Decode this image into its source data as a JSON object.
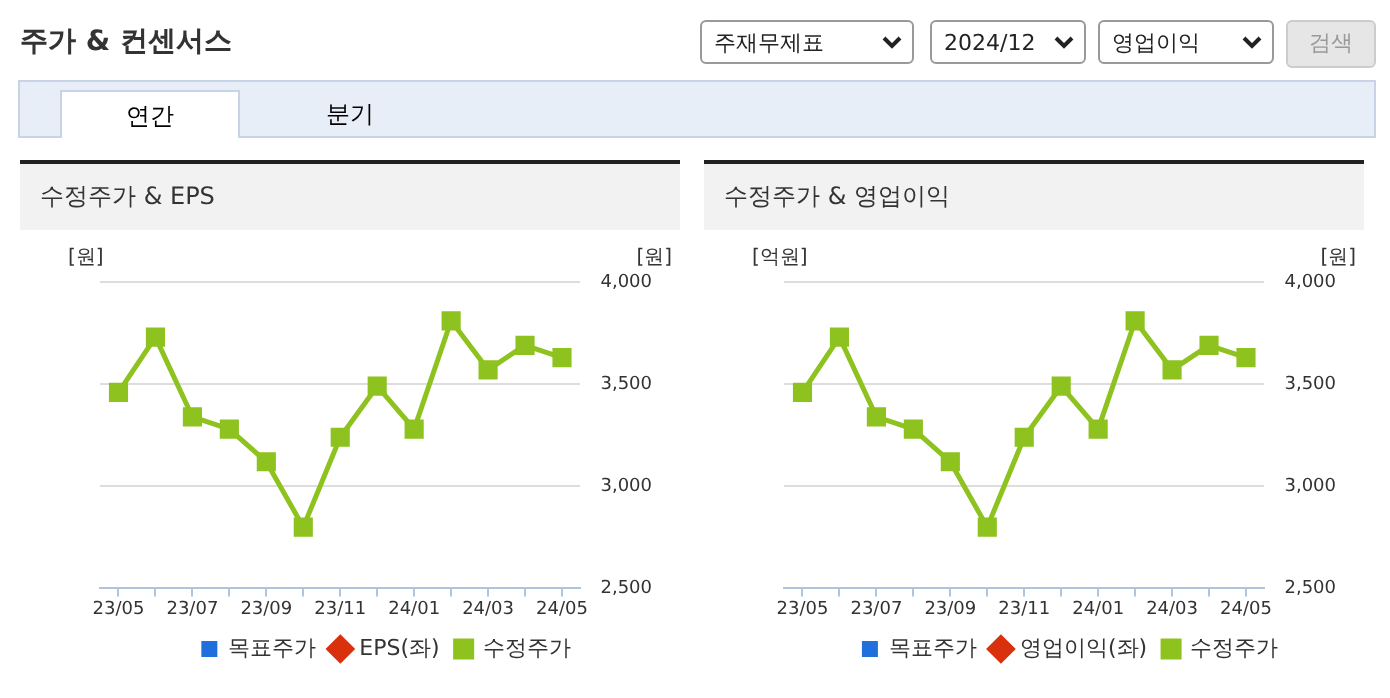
{
  "chart_data": [
    {
      "type": "line",
      "title": "수정주가 & EPS",
      "ylabel": "[원]",
      "y2label": "[원]",
      "annotations": [
        "주가 & 컨센서스",
        "주재무제표",
        "2024/12",
        "영업이익",
        "검색",
        "연간",
        "분기"
      ],
      "categories": [
        "23/05",
        null,
        "23/07",
        null,
        "23/09",
        null,
        "23/11",
        null,
        "24/01",
        null,
        "24/03",
        null,
        "24/05"
      ],
      "series": [
        {
          "name": "목표주가",
          "type": "bar",
          "color": "#1f6fdc",
          "values": [
            null,
            null,
            null,
            null,
            null,
            null,
            null,
            null,
            null,
            null,
            null,
            null,
            null
          ]
        },
        {
          "name": "EPS(좌)",
          "marker": "diamond",
          "color": "#d9300d",
          "values": [
            null,
            null,
            null,
            null,
            null,
            null,
            null,
            null,
            null,
            null,
            null,
            null,
            null
          ]
        },
        {
          "name": "수정주가",
          "marker": "square",
          "axis": "y2",
          "color": "#8dc21f",
          "values": [
            3460,
            3730,
            3340,
            3280,
            3120,
            2800,
            3240,
            3490,
            3280,
            3810,
            3570,
            3690,
            3630
          ]
        }
      ],
      "y2lim": [
        2500,
        4000
      ],
      "y2ticks": [
        {
          "value": 2500,
          "label": "2,500"
        },
        {
          "value": 3000,
          "label": "3,000"
        },
        {
          "value": 3500,
          "label": "3,500"
        },
        {
          "value": 4000,
          "label": "4,000"
        }
      ],
      "grid": "y",
      "legend": "bottom"
    },
    {
      "type": "line",
      "title": "수정주가 & 영업이익",
      "ylabel": "[억원]",
      "y2label": "[원]",
      "categories": [
        "23/05",
        null,
        "23/07",
        null,
        "23/09",
        null,
        "23/11",
        null,
        "24/01",
        null,
        "24/03",
        null,
        "24/05"
      ],
      "series": [
        {
          "name": "목표주가",
          "type": "bar",
          "color": "#1f6fdc",
          "values": [
            null,
            null,
            null,
            null,
            null,
            null,
            null,
            null,
            null,
            null,
            null,
            null,
            null
          ]
        },
        {
          "name": "영업이익(좌)",
          "marker": "diamond",
          "color": "#d9300d",
          "values": [
            null,
            null,
            null,
            null,
            null,
            null,
            null,
            null,
            null,
            null,
            null,
            null,
            null
          ]
        },
        {
          "name": "수정주가",
          "marker": "square",
          "axis": "y2",
          "color": "#8dc21f",
          "values": [
            3460,
            3730,
            3340,
            3280,
            3120,
            2800,
            3240,
            3490,
            3280,
            3810,
            3570,
            3690,
            3630
          ]
        }
      ],
      "y2lim": [
        2500,
        4000
      ],
      "y2ticks": [
        {
          "value": 2500,
          "label": "2,500"
        },
        {
          "value": 3000,
          "label": "3,000"
        },
        {
          "value": 3500,
          "label": "3,500"
        },
        {
          "value": 4000,
          "label": "4,000"
        }
      ],
      "grid": "y",
      "legend": "bottom"
    }
  ]
}
